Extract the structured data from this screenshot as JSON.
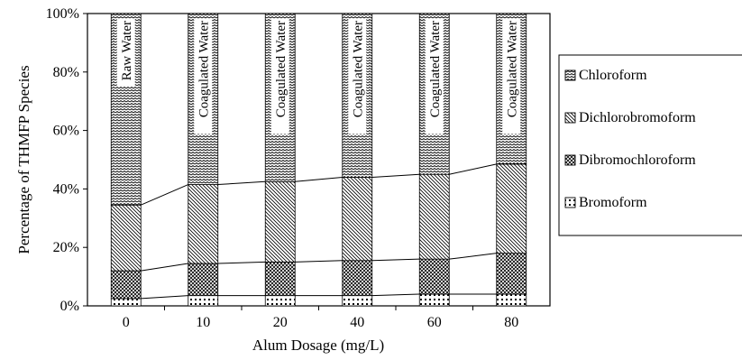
{
  "chart_data": {
    "type": "bar",
    "stacked": true,
    "percent_stacked": true,
    "categories": [
      "0",
      "10",
      "20",
      "40",
      "60",
      "80"
    ],
    "bar_labels": [
      "Raw Water",
      "Coagulated Water",
      "Coagulated Water",
      "Coagulated Water",
      "Coagulated Water",
      "Coagulated Water"
    ],
    "series": [
      {
        "name": "Bromoform",
        "values": [
          2.5,
          3.5,
          3.5,
          3.5,
          4.0,
          4.0
        ]
      },
      {
        "name": "Dibromochloroform",
        "values": [
          9.5,
          11.0,
          11.5,
          12.0,
          12.0,
          14.0
        ]
      },
      {
        "name": "Dichlorobromoform",
        "values": [
          22.5,
          27.0,
          27.5,
          28.5,
          29.0,
          30.5
        ]
      },
      {
        "name": "Chloroform",
        "values": [
          65.5,
          58.5,
          57.5,
          56.0,
          55.0,
          51.5
        ]
      }
    ],
    "legend_order": [
      "Chloroform",
      "Dichlorobromoform",
      "Dibromochloroform",
      "Bromoform"
    ],
    "ylim": [
      0,
      100
    ],
    "yticks": [
      "0%",
      "20%",
      "40%",
      "60%",
      "80%",
      "100%"
    ],
    "xlabel": "Alum Dosage (mg/L)",
    "ylabel": "Percentage of THMFP Species",
    "legend_position": "right",
    "grid": false
  }
}
